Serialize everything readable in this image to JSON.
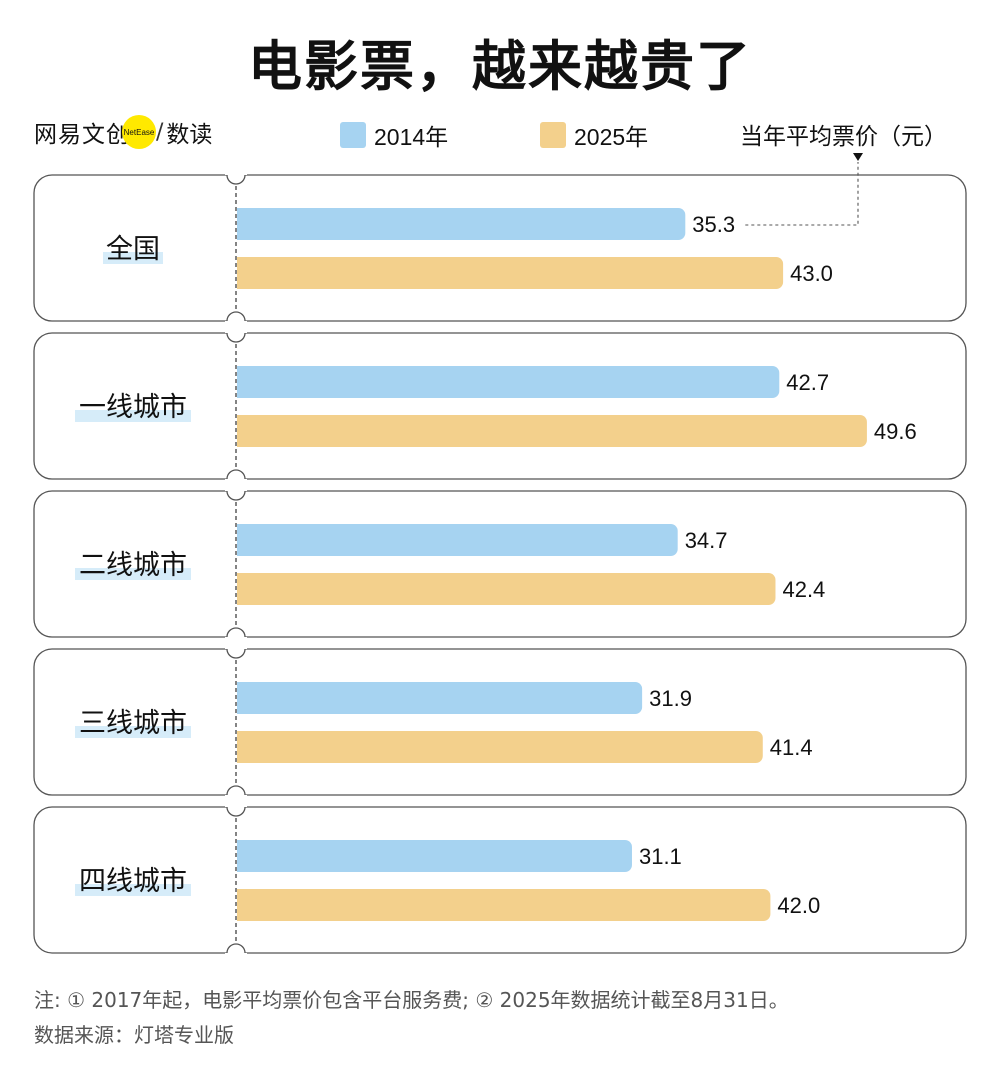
{
  "title": "电影票，越来越贵了",
  "brand": {
    "name": "网易文创",
    "logo_text": "NetEase",
    "sub": "数读"
  },
  "unit_note": "当年平均票价（元）",
  "colors": {
    "series_2014": "#a6d3f1",
    "series_2025": "#f3d08c",
    "label_highlight": "#d6ecf9",
    "card_border": "#555555"
  },
  "chart_data": {
    "type": "bar",
    "orientation": "horizontal",
    "title": "电影票，越来越贵了",
    "unit": "当年平均票价（元）",
    "categories": [
      "全国",
      "一线城市",
      "二线城市",
      "三线城市",
      "四线城市"
    ],
    "series": [
      {
        "name": "2014年",
        "values": [
          35.3,
          42.7,
          34.7,
          31.9,
          31.1
        ]
      },
      {
        "name": "2025年",
        "values": [
          43.0,
          49.6,
          42.4,
          41.4,
          42.0
        ]
      }
    ],
    "value_labels": [
      [
        "35.3",
        "43.0"
      ],
      [
        "42.7",
        "49.6"
      ],
      [
        "34.7",
        "42.4"
      ],
      [
        "31.9",
        "41.4"
      ],
      [
        "31.1",
        "42.0"
      ]
    ],
    "legend": "top",
    "grid": false
  },
  "footnotes": {
    "note": "注: ① 2017年起，电影平均票价包含平台服务费; ② 2025年数据统计截至8月31日。",
    "source": "数据来源：灯塔专业版"
  }
}
